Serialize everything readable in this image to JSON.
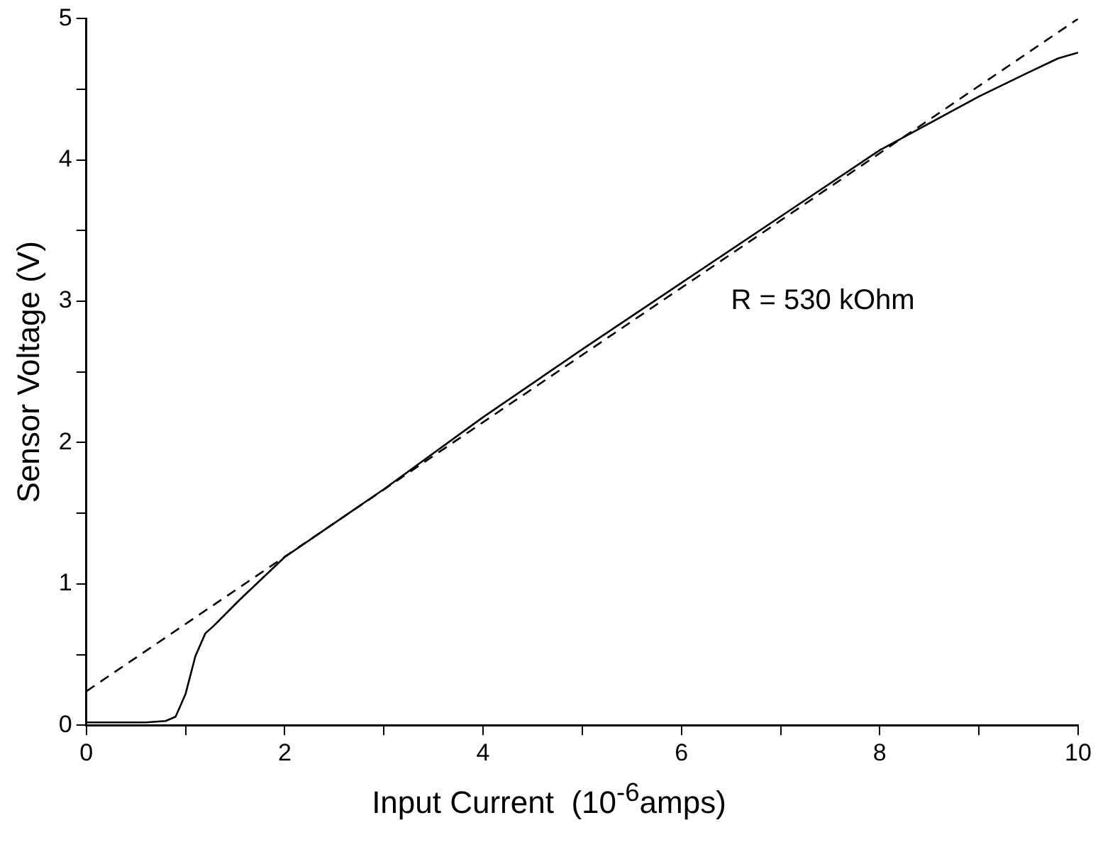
{
  "chart_data": {
    "type": "line",
    "xlabel": "Input Current  (10$^{-6}$amps)",
    "ylabel": "Sensor Voltage (V)",
    "annotations": [
      "R = 530 kOhm"
    ],
    "xlim": [
      0,
      10
    ],
    "xticks": [
      0,
      {
        "value": 1,
        "label": null
      },
      2,
      {
        "value": 3,
        "label": null
      },
      4,
      {
        "value": 5,
        "label": null
      },
      6,
      {
        "value": 7,
        "label": null
      },
      8,
      {
        "value": 9,
        "label": null
      },
      10
    ],
    "ylim": [
      0,
      5
    ],
    "yticks": [
      0,
      {
        "value": 0.5,
        "label": null
      },
      1,
      {
        "value": 1.5,
        "label": null
      },
      2,
      {
        "value": 2.5,
        "label": null
      },
      3,
      {
        "value": 3.5,
        "label": null
      },
      4,
      {
        "value": 4.5,
        "label": null
      },
      5
    ],
    "grid": false,
    "legend": false,
    "marker": "none",
    "series": [
      {
        "color": "#000000",
        "line_style": "solid",
        "x": [
          0,
          0.6,
          0.8,
          0.9,
          1.0,
          1.1,
          1.2,
          1.28,
          1.55,
          2,
          3,
          4,
          5,
          6,
          7,
          8,
          9,
          9.5,
          9.8,
          10
        ],
        "values": [
          0.02,
          0.02,
          0.03,
          0.06,
          0.22,
          0.49,
          0.65,
          0.7,
          0.89,
          1.19,
          1.67,
          2.18,
          2.66,
          3.13,
          3.6,
          4.07,
          4.45,
          4.62,
          4.72,
          4.76
        ]
      },
      {
        "color": "#000000",
        "line_style": "dashed",
        "x": [
          0,
          10
        ],
        "values": [
          0.24,
          5.0
        ]
      }
    ]
  }
}
